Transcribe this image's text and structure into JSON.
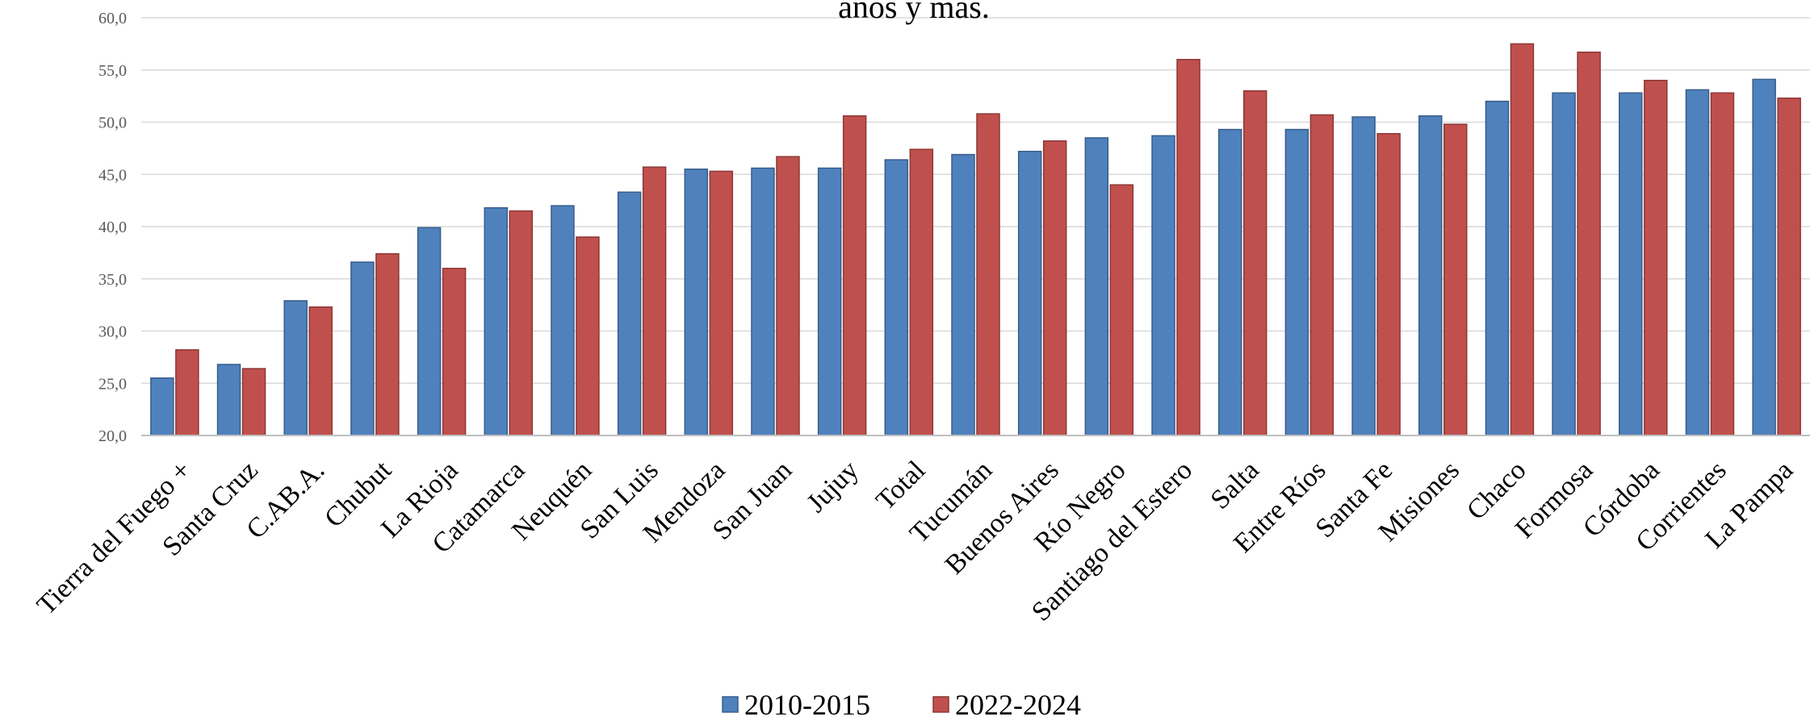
{
  "chart_data": {
    "type": "bar",
    "title": "años y más.",
    "xlabel": "",
    "ylabel": "",
    "ylim": [
      20,
      60
    ],
    "y_ticks": [
      "20,0",
      "25,0",
      "30,0",
      "35,0",
      "40,0",
      "45,0",
      "50,0",
      "55,0",
      "60,0"
    ],
    "grid": true,
    "legend_position": "bottom",
    "categories": [
      "Tierra del Fuego +",
      "Santa Cruz",
      "C.AB.A.",
      "Chubut",
      "La Rioja",
      "Catamarca",
      "Neuquén",
      "San Luis",
      "Mendoza",
      "San Juan",
      "Jujuy",
      "Total",
      "Tucumán",
      "Buenos Aires",
      "Río Negro",
      "Santiago del Estero",
      "Salta",
      "Entre Ríos",
      "Santa Fe",
      "Misiones",
      "Chaco",
      "Formosa",
      "Córdoba",
      "Corrientes",
      "La Pampa"
    ],
    "series": [
      {
        "name": "2010-2015",
        "color": "#4f81bd",
        "values": [
          25.5,
          26.8,
          32.9,
          36.6,
          39.9,
          41.8,
          42.0,
          43.3,
          45.5,
          45.6,
          45.6,
          46.4,
          46.9,
          47.2,
          48.5,
          48.7,
          49.3,
          49.3,
          50.5,
          50.6,
          52.0,
          52.8,
          52.8,
          53.1,
          54.1
        ]
      },
      {
        "name": "2022-2024",
        "color": "#c0504d",
        "values": [
          28.2,
          26.4,
          32.3,
          37.4,
          36.0,
          41.5,
          39.0,
          45.7,
          45.3,
          46.7,
          50.6,
          47.4,
          50.8,
          48.2,
          44.0,
          56.0,
          53.0,
          50.7,
          48.9,
          49.8,
          57.5,
          56.7,
          54.0,
          52.8,
          52.3
        ]
      }
    ]
  }
}
